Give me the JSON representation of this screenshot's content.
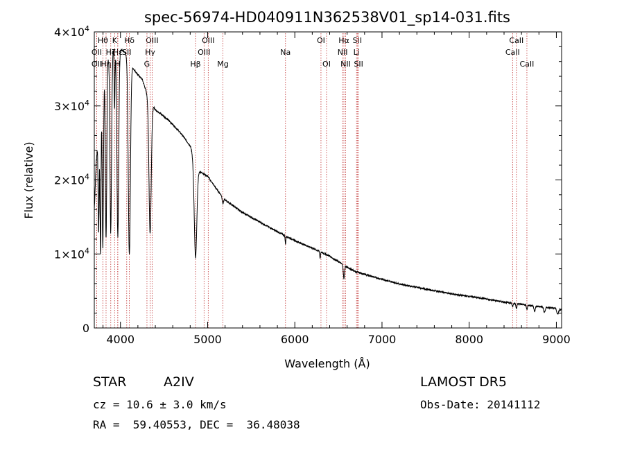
{
  "chart_data": {
    "type": "line",
    "title": "spec-56974-HD040911N362538V01_sp14-031.fits",
    "xlabel": "Wavelength (Å)",
    "ylabel": "Flux (relative)",
    "xlim": [
      3700,
      9060
    ],
    "ylim": [
      0,
      40000
    ],
    "x_ticks": [
      4000,
      5000,
      6000,
      7000,
      8000,
      9000
    ],
    "x_tick_labels": [
      "4000",
      "5000",
      "6000",
      "7000",
      "8000",
      "9000"
    ],
    "y_ticks": [
      {
        "value": 0,
        "mantissa": "0",
        "exponent": ""
      },
      {
        "value": 10000,
        "mantissa": "1×10",
        "exponent": "4"
      },
      {
        "value": 20000,
        "mantissa": "2×10",
        "exponent": "4"
      },
      {
        "value": 30000,
        "mantissa": "3×10",
        "exponent": "4"
      },
      {
        "value": 40000,
        "mantissa": "4×10",
        "exponent": "4"
      }
    ],
    "series": [
      {
        "continuum": [
          [
            3700,
            16000
          ],
          [
            3720,
            22000
          ],
          [
            3750,
            27000
          ],
          [
            3780,
            31500
          ],
          [
            3820,
            34500
          ],
          [
            3860,
            36500
          ],
          [
            3900,
            37200
          ],
          [
            3950,
            37500
          ],
          [
            4000,
            37700
          ],
          [
            4050,
            37200
          ],
          [
            4100,
            36000
          ],
          [
            4150,
            35000
          ],
          [
            4200,
            34200
          ],
          [
            4250,
            33600
          ],
          [
            4300,
            31800
          ],
          [
            4350,
            30500
          ],
          [
            4400,
            29500
          ],
          [
            4500,
            28600
          ],
          [
            4600,
            27500
          ],
          [
            4700,
            26200
          ],
          [
            4800,
            24600
          ],
          [
            4900,
            21200
          ],
          [
            5000,
            20500
          ],
          [
            5100,
            18800
          ],
          [
            5200,
            17300
          ],
          [
            5400,
            15600
          ],
          [
            5600,
            14300
          ],
          [
            5800,
            13000
          ],
          [
            6000,
            11800
          ],
          [
            6200,
            10800
          ],
          [
            6400,
            9700
          ],
          [
            6600,
            8200
          ],
          [
            6700,
            7600
          ],
          [
            6900,
            6900
          ],
          [
            7200,
            5950
          ],
          [
            7500,
            5250
          ],
          [
            7800,
            4600
          ],
          [
            8100,
            4100
          ],
          [
            8400,
            3500
          ],
          [
            8600,
            3200
          ],
          [
            8800,
            2900
          ],
          [
            9000,
            2600
          ],
          [
            9060,
            2500
          ]
        ],
        "absorption_lines": [
          {
            "center": 3750,
            "depth": 14000,
            "width": 6
          },
          {
            "center": 3771,
            "depth": 20000,
            "width": 6
          },
          {
            "center": 3798,
            "depth": 22000,
            "width": 7
          },
          {
            "center": 3835,
            "depth": 23000,
            "width": 8
          },
          {
            "center": 3889,
            "depth": 24000,
            "width": 9
          },
          {
            "center": 3933,
            "depth": 8000,
            "width": 4
          },
          {
            "center": 3970,
            "depth": 25000,
            "width": 10
          },
          {
            "center": 4102,
            "depth": 26000,
            "width": 12
          },
          {
            "center": 4340,
            "depth": 18000,
            "width": 13
          },
          {
            "center": 4861,
            "depth": 13000,
            "width": 15
          },
          {
            "center": 5175,
            "depth": 800,
            "width": 8
          },
          {
            "center": 5893,
            "depth": 1100,
            "width": 4
          },
          {
            "center": 6290,
            "depth": 900,
            "width": 4
          },
          {
            "center": 6563,
            "depth": 1800,
            "width": 7
          },
          {
            "center": 8498,
            "depth": 500,
            "width": 6
          },
          {
            "center": 8542,
            "depth": 600,
            "width": 6
          },
          {
            "center": 8662,
            "depth": 600,
            "width": 6
          },
          {
            "center": 8750,
            "depth": 700,
            "width": 8
          },
          {
            "center": 8863,
            "depth": 700,
            "width": 9
          },
          {
            "center": 9015,
            "depth": 700,
            "width": 10
          }
        ]
      }
    ],
    "line_markers": [
      {
        "label": "Hθ",
        "wavelength": 3798,
        "row": 1
      },
      {
        "label": "OII",
        "wavelength": 3727,
        "row": 2
      },
      {
        "label": "OII",
        "wavelength": 3727,
        "row": 3
      },
      {
        "label": "Hη",
        "wavelength": 3835,
        "row": 3
      },
      {
        "label": "Hζ",
        "wavelength": 3889,
        "row": 2
      },
      {
        "label": "Hε",
        "wavelength": 3970,
        "row": 2
      },
      {
        "label": "K",
        "wavelength": 3933,
        "row": 1
      },
      {
        "label": "H",
        "wavelength": 3968,
        "row": 3
      },
      {
        "label": "Hδ",
        "wavelength": 4102,
        "row": 1
      },
      {
        "label": "SII",
        "wavelength": 4072,
        "row": 2
      },
      {
        "label": "OIII",
        "wavelength": 4363,
        "row": 1
      },
      {
        "label": "Hγ",
        "wavelength": 4340,
        "row": 2
      },
      {
        "label": "G",
        "wavelength": 4304,
        "row": 3
      },
      {
        "label": "OIII",
        "wavelength": 5007,
        "row": 1
      },
      {
        "label": "OIII",
        "wavelength": 4959,
        "row": 2
      },
      {
        "label": "Hβ",
        "wavelength": 4861,
        "row": 3
      },
      {
        "label": "Mg",
        "wavelength": 5175,
        "row": 3
      },
      {
        "label": "Na",
        "wavelength": 5893,
        "row": 2
      },
      {
        "label": "OI",
        "wavelength": 6300,
        "row": 1
      },
      {
        "label": "OI",
        "wavelength": 6364,
        "row": 3
      },
      {
        "label": "Hα",
        "wavelength": 6563,
        "row": 1
      },
      {
        "label": "NII",
        "wavelength": 6548,
        "row": 2
      },
      {
        "label": "NII",
        "wavelength": 6583,
        "row": 3
      },
      {
        "label": "SII",
        "wavelength": 6717,
        "row": 1
      },
      {
        "label": "Li",
        "wavelength": 6708,
        "row": 2
      },
      {
        "label": "SII",
        "wavelength": 6731,
        "row": 3
      },
      {
        "label": "CaII",
        "wavelength": 8542,
        "row": 1
      },
      {
        "label": "CaII",
        "wavelength": 8498,
        "row": 2
      },
      {
        "label": "CaII",
        "wavelength": 8662,
        "row": 3
      }
    ],
    "grid": false,
    "line_color": "#000000",
    "marker_line_color": "#c03030"
  },
  "info": {
    "object_type": "STAR",
    "spectral_class": "A2IV",
    "survey": "LAMOST DR5",
    "redshift": "cz = 10.6 ± 3.0 km/s",
    "obs_date": "Obs-Date: 20141112",
    "coordinates": "RA =  59.40553, DEC =  36.48038"
  }
}
